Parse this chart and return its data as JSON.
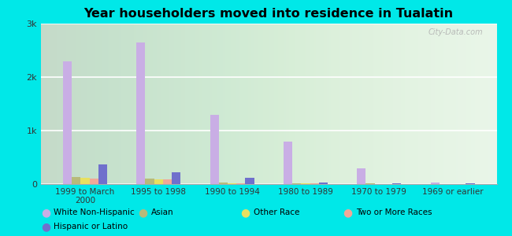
{
  "title": "Year householders moved into residence in Tualatin",
  "categories": [
    "1999 to March\n2000",
    "1995 to 1998",
    "1990 to 1994",
    "1980 to 1989",
    "1970 to 1979",
    "1969 or earlier"
  ],
  "series": {
    "White Non-Hispanic": [
      2300,
      2650,
      1300,
      800,
      300,
      30
    ],
    "Asian": [
      130,
      100,
      30,
      15,
      10,
      5
    ],
    "Other Race": [
      120,
      90,
      20,
      10,
      5,
      5
    ],
    "Two or More Races": [
      110,
      90,
      20,
      10,
      5,
      5
    ],
    "Hispanic or Latino": [
      370,
      220,
      120,
      30,
      10,
      20
    ]
  },
  "colors": {
    "White Non-Hispanic": "#c9aee5",
    "Asian": "#b8ba7a",
    "Other Race": "#e8e060",
    "Two or More Races": "#f0a898",
    "Hispanic or Latino": "#7070cc"
  },
  "ylim": [
    0,
    3000
  ],
  "yticks": [
    0,
    1000,
    2000,
    3000
  ],
  "ytick_labels": [
    "0",
    "1k",
    "2k",
    "3k"
  ],
  "outer_bg": "#00e8e8",
  "plot_bg": "#e8f5e8",
  "bar_width": 0.12,
  "watermark": "City-Data.com",
  "legend_order": [
    "White Non-Hispanic",
    "Asian",
    "Other Race",
    "Two or More Races",
    "Hispanic or Latino"
  ]
}
